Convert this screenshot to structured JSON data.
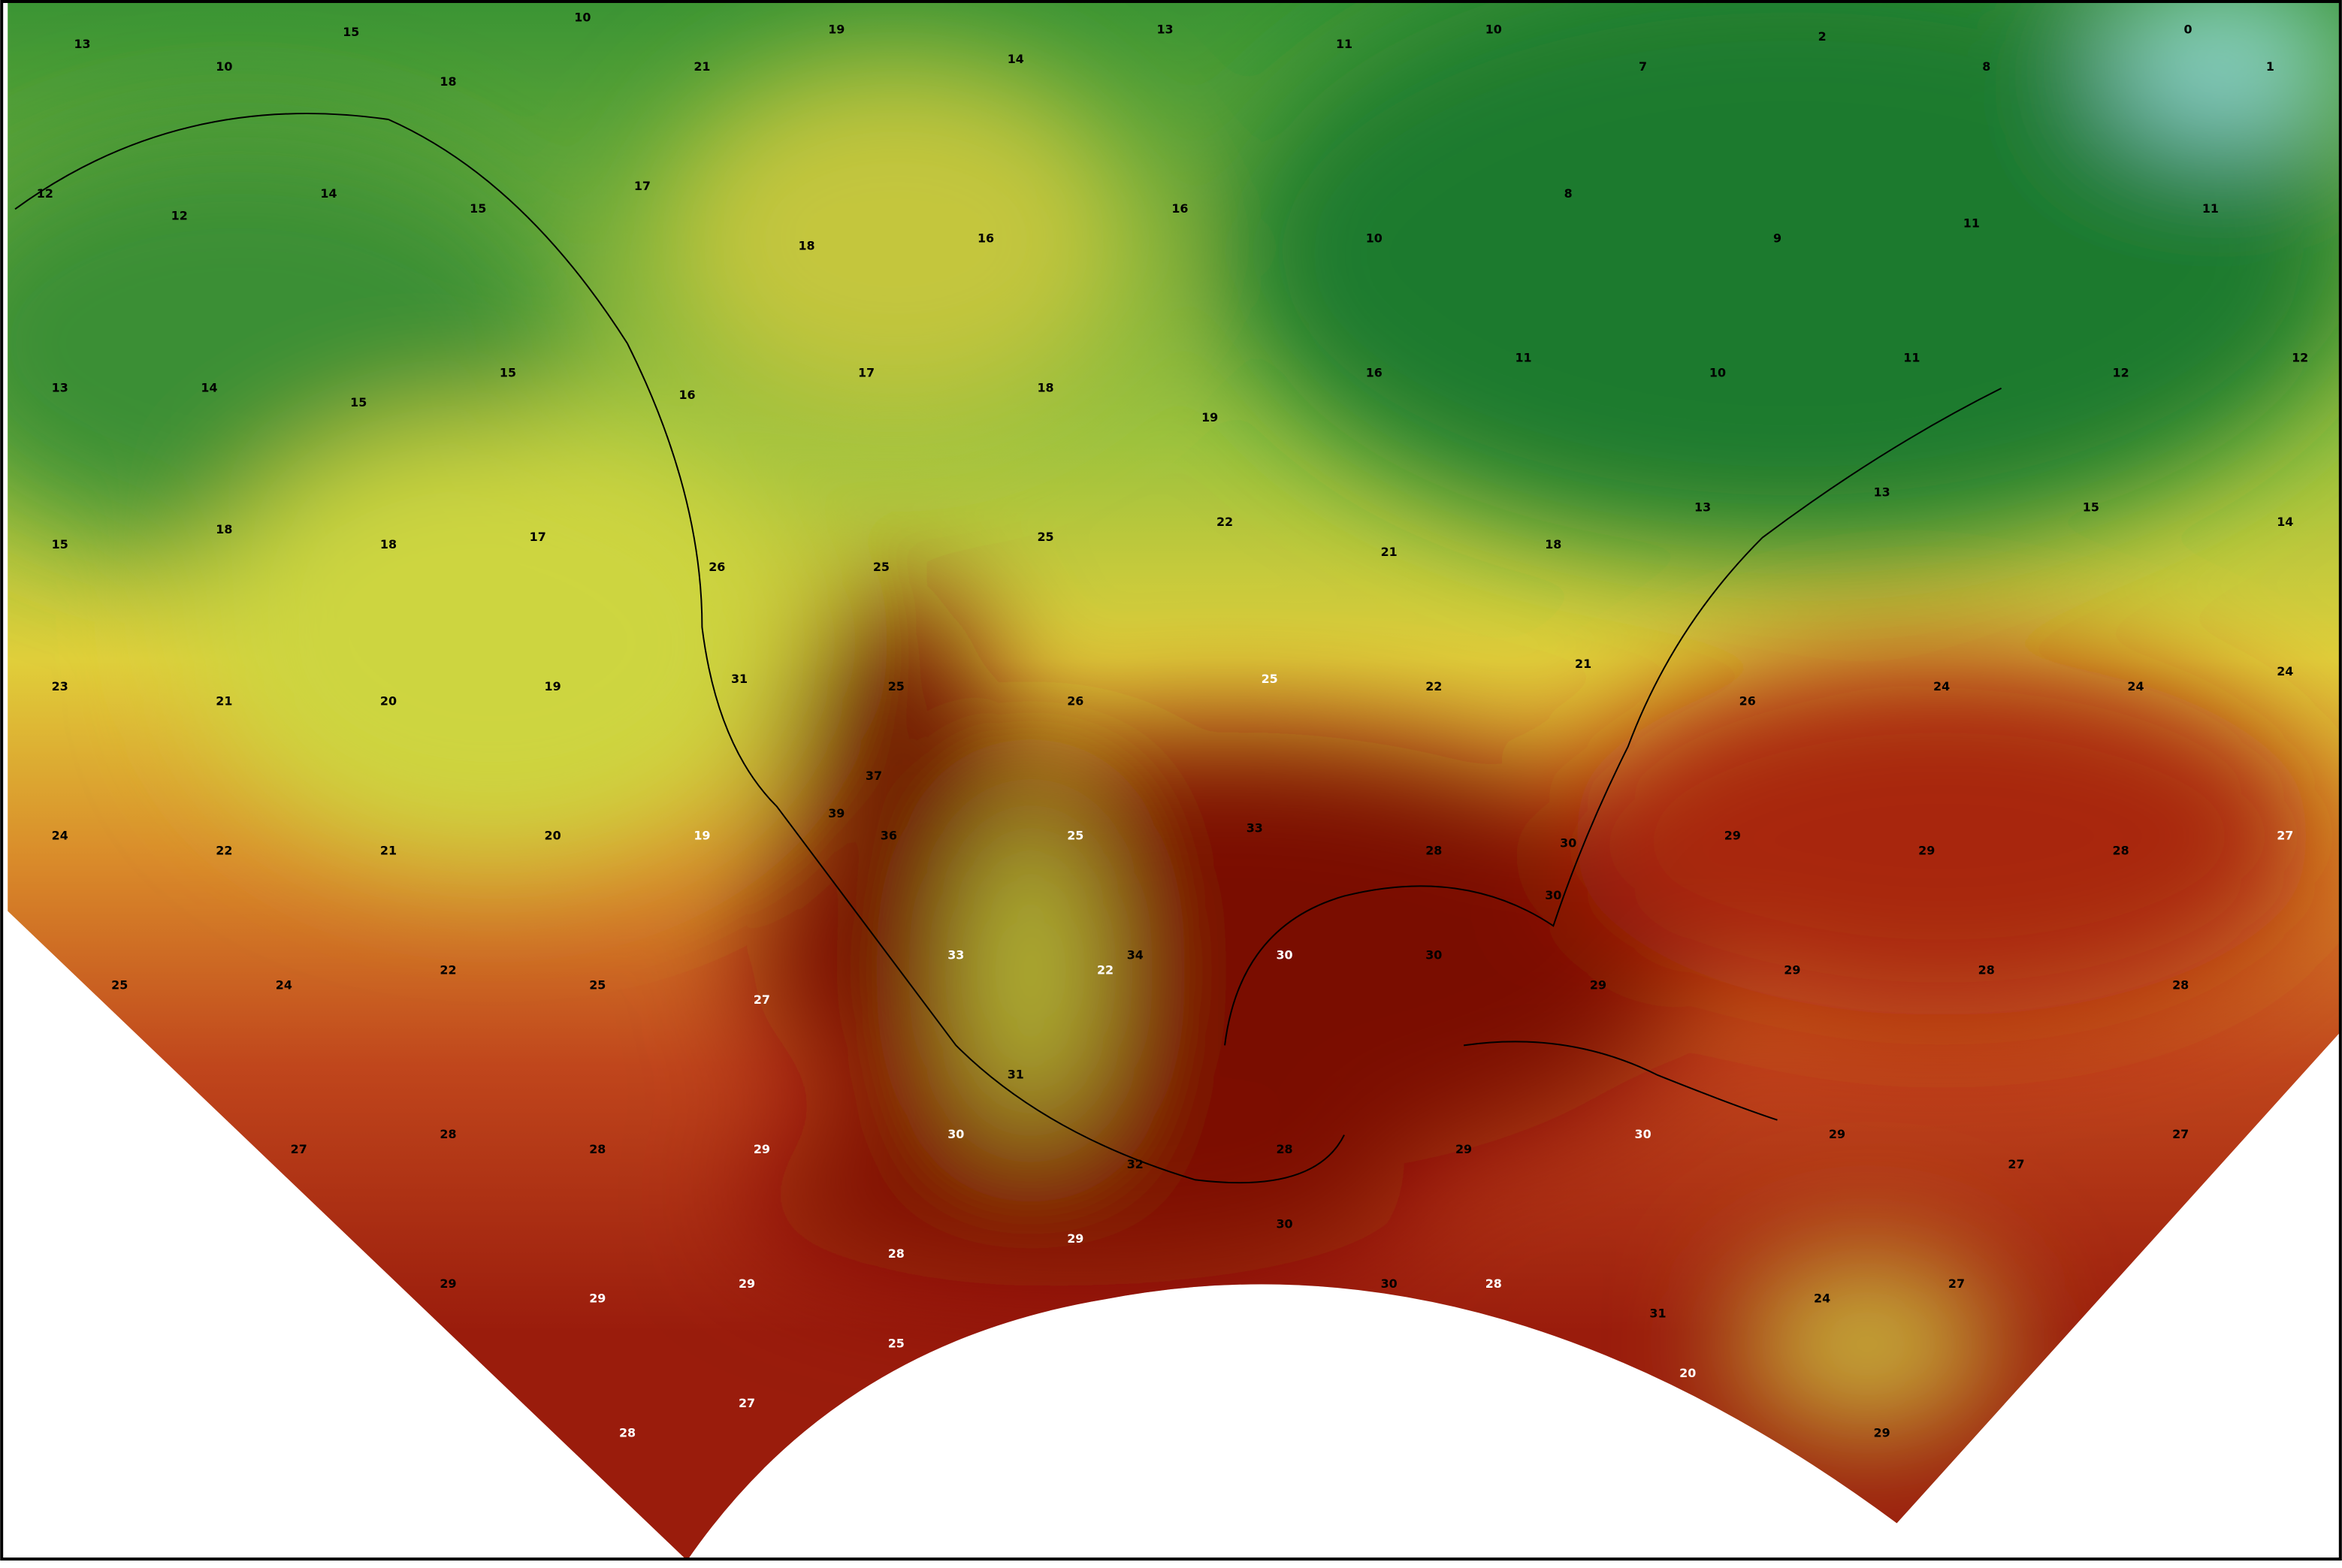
{
  "temperature_labels": [
    13,
    10,
    15,
    18,
    10,
    21,
    19,
    14,
    13,
    11,
    10,
    7,
    2,
    8,
    0,
    1,
    12,
    12,
    14,
    15,
    17,
    18,
    16,
    16,
    10,
    8,
    9,
    11,
    11,
    13,
    14,
    15,
    15,
    16,
    17,
    18,
    19,
    16,
    11,
    10,
    11,
    12,
    12,
    15,
    18,
    18,
    17,
    26,
    25,
    25,
    22,
    21,
    18,
    13,
    13,
    15,
    14,
    23,
    21,
    20,
    19,
    31,
    25,
    26,
    25,
    22,
    21,
    26,
    24,
    24,
    24,
    24,
    22,
    21,
    20,
    19,
    36,
    25,
    33,
    28,
    30,
    29,
    29,
    28,
    27,
    25,
    24,
    22,
    25,
    27,
    33,
    22,
    30,
    30,
    29,
    29,
    28,
    28,
    27,
    28,
    28,
    29,
    30,
    32,
    28,
    29,
    30,
    29,
    27,
    27,
    29,
    29,
    29,
    28,
    29,
    30,
    30,
    28,
    31,
    24,
    27,
    28,
    27,
    25,
    20,
    29,
    39,
    37,
    31,
    34,
    30
  ]
}
